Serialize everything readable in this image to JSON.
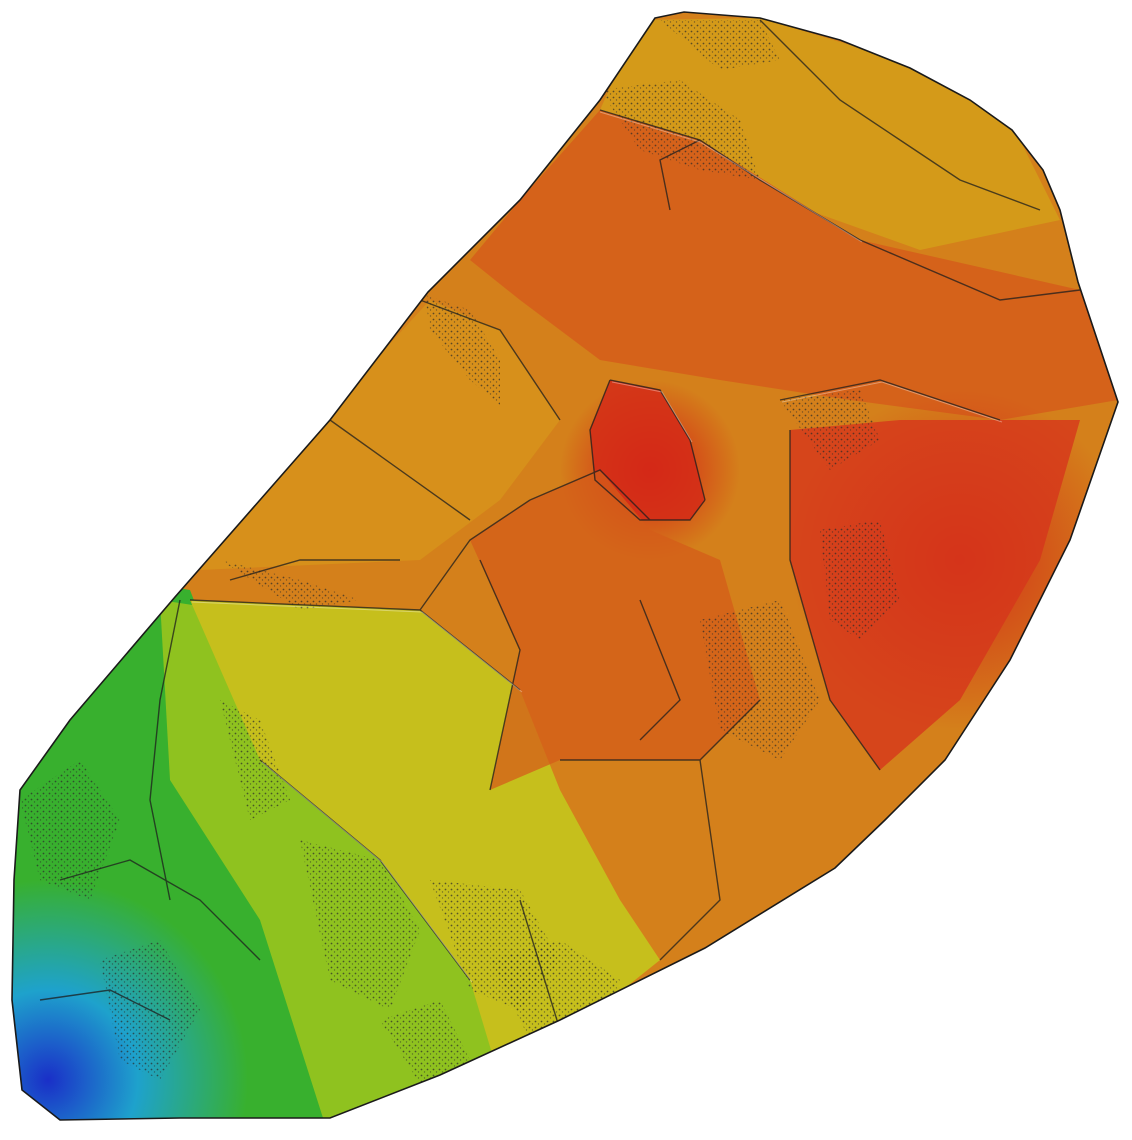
{
  "map": {
    "kind": "elevation-hillshade",
    "background": "#ffffff",
    "outline_color": "#1a1a1a",
    "color_ramp": [
      "#1a2fc8",
      "#19a6c9",
      "#1fae3a",
      "#7cc21f",
      "#c9c21b",
      "#d59a17",
      "#d6701a",
      "#d5451a",
      "#d41f16"
    ],
    "features": {
      "high_point_color": "#d41f16",
      "low_point_color": "#1a2fc8"
    }
  }
}
